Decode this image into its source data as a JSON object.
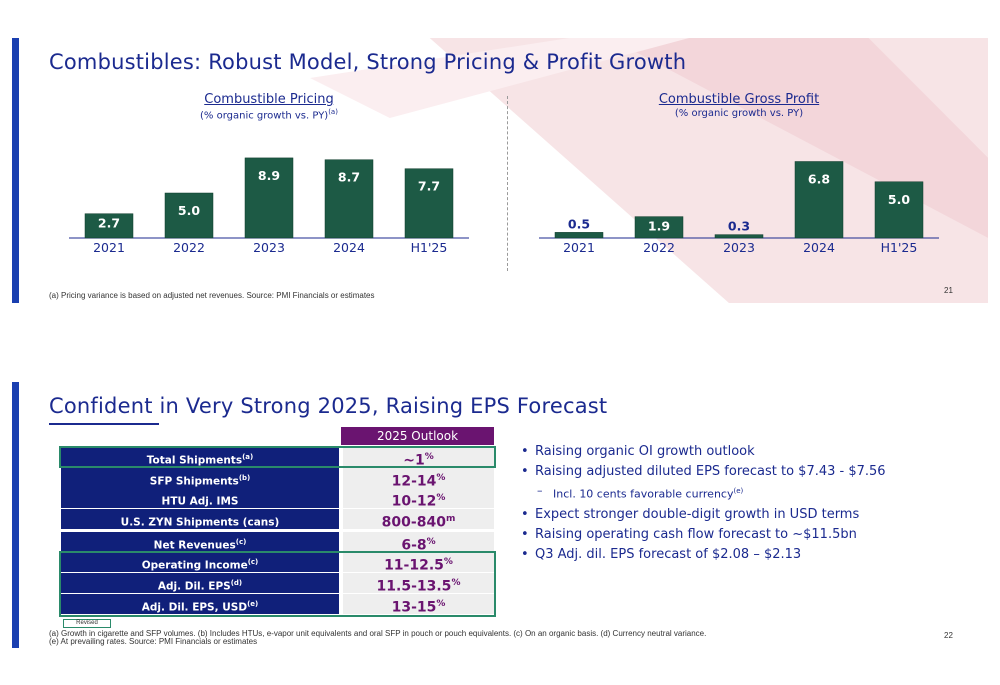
{
  "slide1": {
    "title": "Combustibles: Robust Model, Strong Pricing & Profit Growth",
    "footnote": "(a) Pricing variance is based on adjusted net revenues. Source: PMI Financials or estimates",
    "page_number": "21"
  },
  "chart_data": [
    {
      "type": "bar",
      "title": "Combustible Pricing",
      "subtitle": "(% organic growth vs. PY)",
      "subtitle_note": "(a)",
      "categories": [
        "2021",
        "2022",
        "2023",
        "2024",
        "H1'25"
      ],
      "values": [
        2.7,
        5.0,
        8.9,
        8.7,
        7.7
      ],
      "value_labels": [
        "2.7",
        "5.0",
        "8.9",
        "8.7",
        "7.7"
      ],
      "ylim": [
        0,
        10
      ],
      "color": "#1d5a45",
      "grid": false,
      "legend": "none"
    },
    {
      "type": "bar",
      "title": "Combustible Gross Profit",
      "subtitle": "(% organic growth vs. PY)",
      "categories": [
        "2021",
        "2022",
        "2023",
        "2024",
        "H1'25"
      ],
      "values": [
        0.5,
        1.9,
        0.3,
        6.8,
        5.0
      ],
      "value_labels": [
        "0.5",
        "1.9",
        "0.3",
        "6.8",
        "5.0"
      ],
      "ylim": [
        0,
        8
      ],
      "color": "#1d5a45",
      "grid": false,
      "legend": "none"
    }
  ],
  "slide2": {
    "title": "Confident in Very Strong 2025, Raising EPS Forecast",
    "outlook_header": "2025 Outlook",
    "rows": [
      {
        "label": "Total Shipments",
        "note": "(a)",
        "value": "~1",
        "unit": "%"
      },
      {
        "label": "SFP Shipments",
        "note": "(b)",
        "value": "12-14",
        "unit": "%"
      },
      {
        "label": "HTU Adj. IMS",
        "note": "",
        "value": "10-12",
        "unit": "%"
      },
      {
        "label": "U.S. ZYN Shipments (cans)",
        "note": "",
        "value": "800-840",
        "unit": "m"
      },
      {
        "label": "Net Revenues",
        "note": "(c)",
        "value": "6-8",
        "unit": "%"
      },
      {
        "label": "Operating Income",
        "note": "(c)",
        "value": "11-12.5",
        "unit": "%"
      },
      {
        "label": "Adj. Dil. EPS",
        "note": "(d)",
        "value": "11.5-13.5",
        "unit": "%"
      },
      {
        "label": "Adj. Dil. EPS, USD",
        "note": "(e)",
        "value": "13-15",
        "unit": "%"
      }
    ],
    "bullets": [
      "Raising organic OI growth outlook",
      "Raising adjusted diluted EPS forecast to $7.43 - $7.56",
      "Expect stronger double-digit growth in USD terms",
      "Raising operating cash flow forecast to ~$11.5bn",
      "Q3 Adj. dil. EPS forecast of $2.08 – $2.13"
    ],
    "subbullet": "Incl. 10 cents favorable currency",
    "subbullet_note": "(e)",
    "revised_label": "Revised",
    "footnote_line1": "(a) Growth in cigarette and SFP volumes. (b) Includes HTUs, e-vapor unit equivalents and oral SFP in pouch or pouch equivalents. (c) On an organic basis. (d) Currency neutral variance.",
    "footnote_line2": "(e) At prevailing rates. Source: PMI Financials or estimates",
    "page_number": "22"
  },
  "colors": {
    "accent_blue": "#1b2a8f",
    "bar_green": "#1d5a45",
    "outlook_purple": "#6a1470",
    "label_navy": "#10207a",
    "box_green": "#2a8a6a"
  }
}
